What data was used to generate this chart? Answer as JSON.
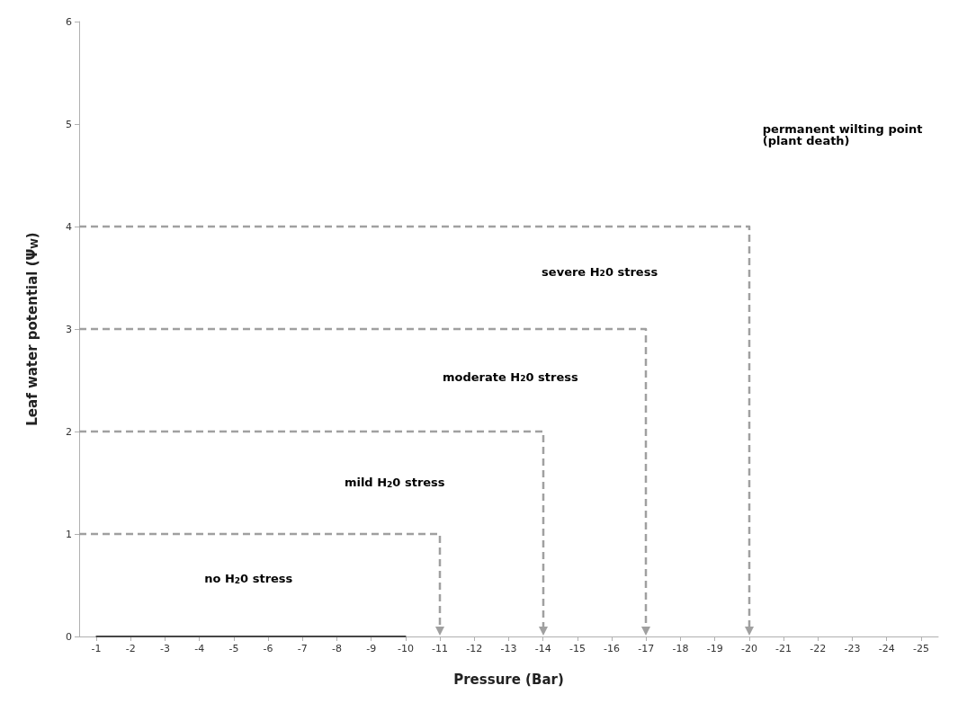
{
  "chart_data": {
    "type": "line",
    "xlabel": "Pressure (Bar)",
    "ylabel": "Leaf water potential (Ψ$_{W}$)",
    "xlim": [
      -0.5,
      -25.5
    ],
    "xticks": [
      -1,
      -2,
      -3,
      -4,
      -5,
      -6,
      -7,
      -8,
      -9,
      -10,
      -11,
      -12,
      -13,
      -14,
      -15,
      -16,
      -17,
      -18,
      -19,
      -20,
      -21,
      -22,
      -23,
      -24,
      -25
    ],
    "ylim": [
      0,
      6
    ],
    "yticks": [
      0,
      1,
      2,
      3,
      4,
      5,
      6
    ],
    "grid": false,
    "series": [
      {
        "color": "#000000",
        "line_style": "solid",
        "x": [
          -1,
          -10
        ],
        "values": [
          0,
          0
        ]
      }
    ],
    "annotations": [
      "no H$_{2}$0 stress",
      "mild H$_{2}$0 stress",
      "moderate H$_{2}$0 stress",
      "severe H$_{2}$0 stress",
      "permanent wilting point\n(plant death)"
    ]
  }
}
